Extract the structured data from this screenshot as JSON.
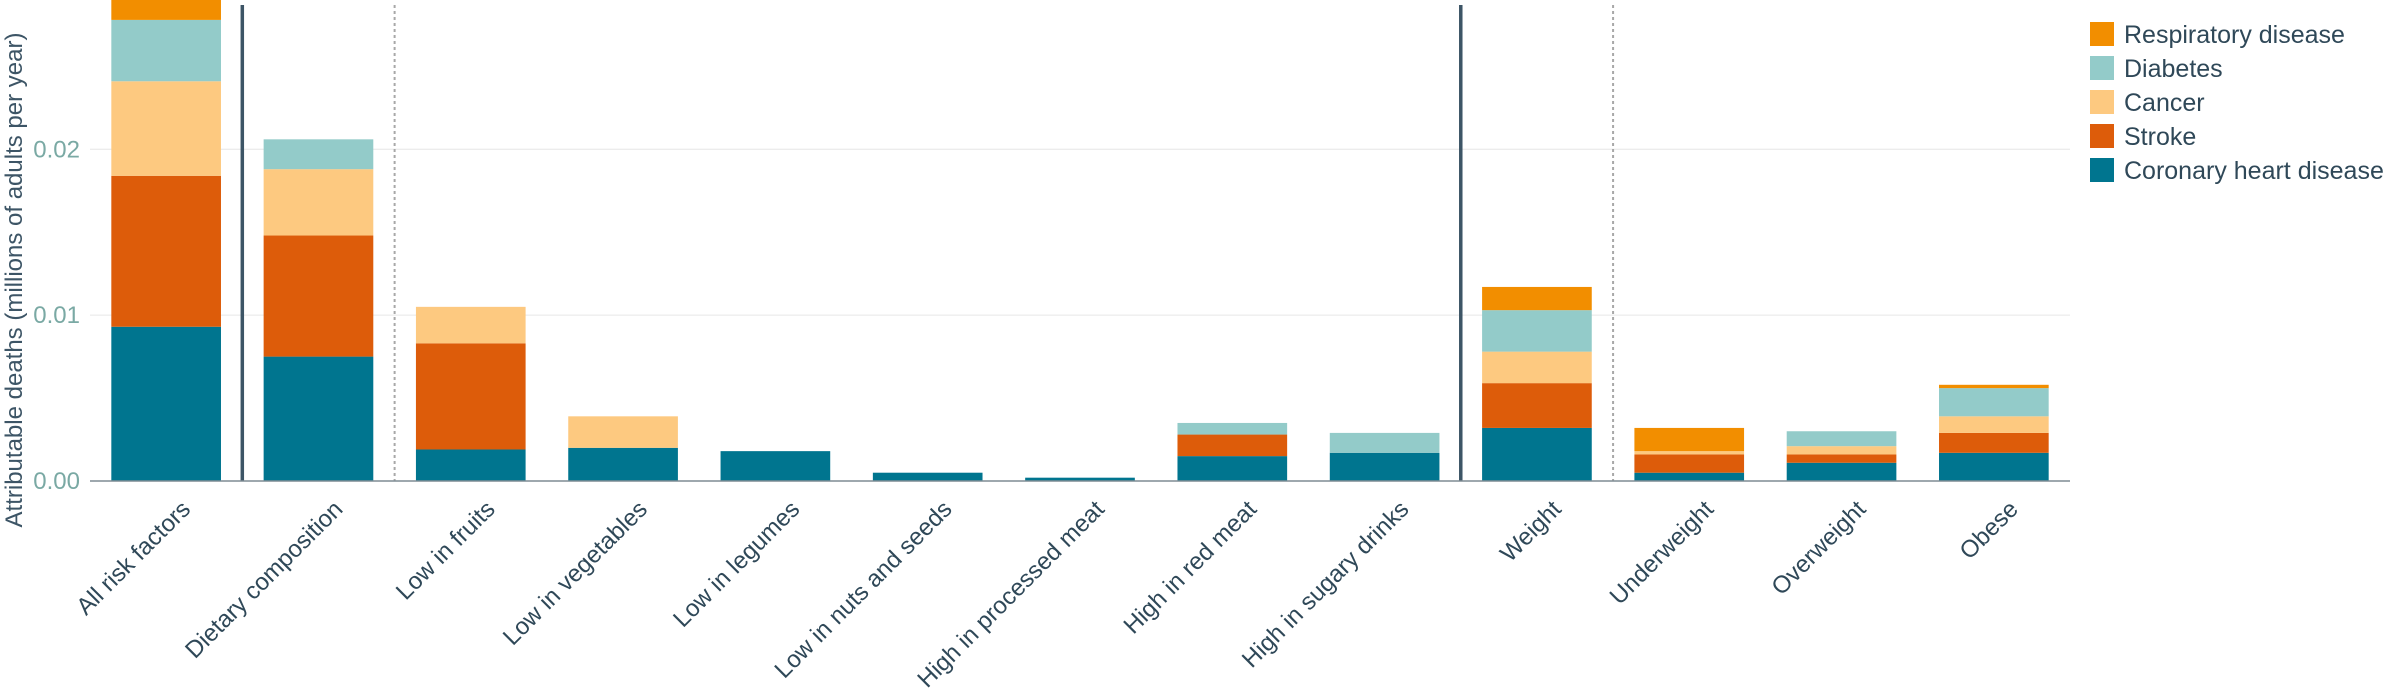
{
  "chart_data": {
    "type": "bar",
    "stacked": true,
    "ylabel": "Attributable deaths (millions of adults per year)",
    "xlabel": "",
    "ylim": [
      0,
      0.029
    ],
    "yticks": [
      0,
      0.01,
      0.02
    ],
    "ytick_labels": [
      "0.00",
      "0.01",
      "0.02"
    ],
    "grid": true,
    "legend_position": "top-right",
    "categories": [
      "All risk factors",
      "Dietary composition",
      "Low in fruits",
      "Low in vegetables",
      "Low in legumes",
      "Low in nuts and seeds",
      "High in processed meat",
      "High in red meat",
      "High in sugary drinks",
      "Weight",
      "Underweight",
      "Overweight",
      "Obese"
    ],
    "group_separators": [
      {
        "after_index": 0,
        "style": "solid"
      },
      {
        "after_index": 1,
        "style": "dotted"
      },
      {
        "after_index": 8,
        "style": "solid"
      },
      {
        "after_index": 9,
        "style": "dotted"
      }
    ],
    "series": [
      {
        "name": "Coronary heart disease",
        "color": "#00758f",
        "values": [
          0.0093,
          0.0075,
          0.0019,
          0.002,
          0.0018,
          0.0005,
          0.0002,
          0.0015,
          0.0017,
          0.0032,
          0.0005,
          0.0011,
          0.0017
        ]
      },
      {
        "name": "Stroke",
        "color": "#dd5c0a",
        "values": [
          0.0091,
          0.0073,
          0.0064,
          0.0,
          0.0,
          0.0,
          0.0,
          0.0013,
          0.0,
          0.0027,
          0.0011,
          0.0005,
          0.0012
        ]
      },
      {
        "name": "Cancer",
        "color": "#fdc980",
        "values": [
          0.0057,
          0.004,
          0.0022,
          0.0019,
          0.0,
          0.0,
          0.0,
          0.0,
          0.0,
          0.0019,
          0.0002,
          0.0005,
          0.001
        ]
      },
      {
        "name": "Diabetes",
        "color": "#93cbc9",
        "values": [
          0.0037,
          0.0018,
          0.0,
          0.0,
          0.0,
          0.0,
          0.0,
          0.0007,
          0.0012,
          0.0025,
          0.0,
          0.0009,
          0.0017
        ]
      },
      {
        "name": "Respiratory disease",
        "color": "#f28e00",
        "values": [
          0.0015,
          0.0,
          0.0,
          0.0,
          0.0,
          0.0,
          0.0,
          0.0,
          0.0,
          0.0014,
          0.0014,
          0.0,
          0.0002
        ]
      }
    ],
    "legend_order": [
      "Respiratory disease",
      "Diabetes",
      "Cancer",
      "Stroke",
      "Coronary heart disease"
    ]
  }
}
